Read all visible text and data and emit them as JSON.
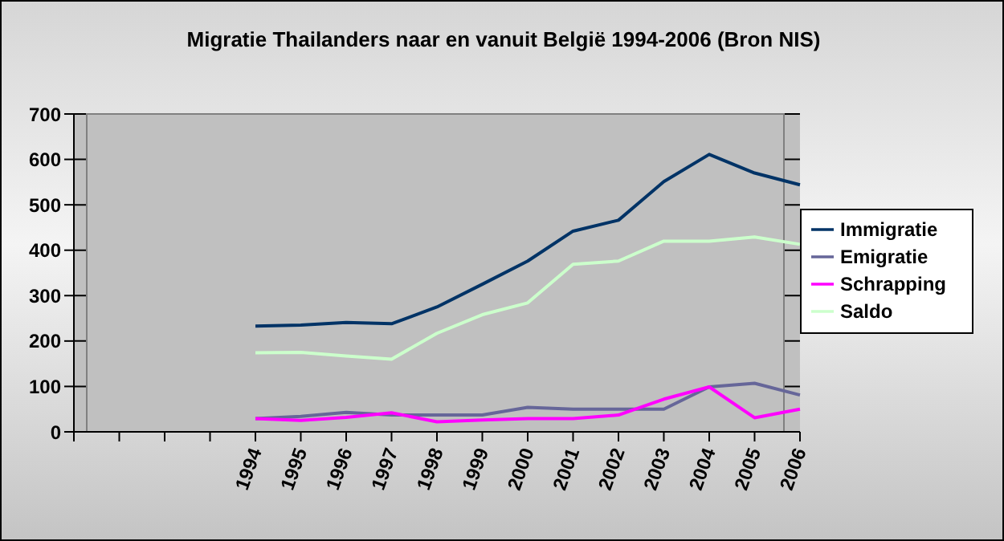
{
  "chart_data": {
    "type": "line",
    "title": "Migratie Thailanders naar en vanuit België 1994-2006 (Bron NIS)",
    "categories": [
      null,
      null,
      null,
      null,
      "1994",
      "1995",
      "1996",
      "1997",
      "1998",
      "1999",
      "2000",
      "2001",
      "2002",
      "2003",
      "2004",
      "2005",
      "2006"
    ],
    "series": [
      {
        "name": "Immigratie",
        "color": "#003366",
        "values": [
          null,
          null,
          null,
          null,
          233,
          235,
          241,
          238,
          275,
          325,
          376,
          442,
          466,
          551,
          611,
          570,
          544
        ]
      },
      {
        "name": "Emigratie",
        "color": "#666699",
        "values": [
          null,
          null,
          null,
          null,
          29,
          34,
          43,
          37,
          37,
          37,
          54,
          50,
          50,
          50,
          99,
          107,
          81
        ]
      },
      {
        "name": "Schrapping",
        "color": "#ff00ff",
        "values": [
          null,
          null,
          null,
          null,
          29,
          25,
          32,
          42,
          22,
          26,
          29,
          29,
          37,
          72,
          99,
          31,
          50
        ]
      },
      {
        "name": "Saldo",
        "color": "#ccffcc",
        "values": [
          null,
          null,
          null,
          null,
          174,
          175,
          167,
          160,
          217,
          258,
          284,
          369,
          376,
          420,
          420,
          429,
          413
        ]
      }
    ],
    "ylim": [
      0,
      700
    ],
    "yticks": [
      0,
      100,
      200,
      300,
      400,
      500,
      600,
      700
    ],
    "grid": "y",
    "legend": "right",
    "marker": "none",
    "line_style": "solid"
  }
}
